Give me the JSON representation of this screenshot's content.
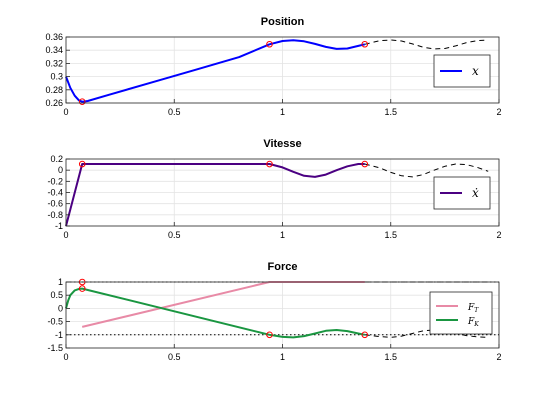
{
  "chart_data": [
    {
      "type": "line",
      "title": "Position",
      "xlim": [
        0,
        2
      ],
      "ylim": [
        0.26,
        0.36
      ],
      "xticks": [
        "0",
        "0.5",
        "1",
        "1.5",
        "2"
      ],
      "yticks": [
        "0.26",
        "0.28",
        "0.3",
        "0.32",
        "0.34",
        "0.36"
      ],
      "grid": true,
      "legend_position": "right",
      "legend": [
        {
          "label": "x",
          "color": "#0000ff"
        }
      ],
      "markers": [
        [
          0.075,
          0.262
        ],
        [
          0.94,
          0.349
        ],
        [
          1.38,
          0.349
        ]
      ],
      "series": [
        {
          "name": "x",
          "color": "#0000ff",
          "style": "solid",
          "x": [
            0,
            0.02,
            0.04,
            0.06,
            0.075,
            0.1,
            0.2,
            0.4,
            0.6,
            0.8,
            0.94,
            1.0,
            1.05,
            1.1,
            1.15,
            1.2,
            1.25,
            1.3,
            1.35,
            1.38
          ],
          "y": [
            0.3,
            0.283,
            0.271,
            0.264,
            0.262,
            0.263,
            0.2725,
            0.2915,
            0.3105,
            0.3295,
            0.349,
            0.354,
            0.355,
            0.3535,
            0.3495,
            0.345,
            0.342,
            0.3425,
            0.3465,
            0.349
          ]
        },
        {
          "name": "",
          "color": "#000000",
          "style": "dashed",
          "x": [
            1.38,
            1.45,
            1.5,
            1.55,
            1.6,
            1.65,
            1.7,
            1.75,
            1.8,
            1.85,
            1.9,
            1.95
          ],
          "y": [
            0.349,
            0.3545,
            0.3555,
            0.354,
            0.3495,
            0.3445,
            0.342,
            0.3425,
            0.3465,
            0.3515,
            0.3545,
            0.3555
          ]
        }
      ]
    },
    {
      "type": "line",
      "title": "Vitesse",
      "xlim": [
        0,
        2
      ],
      "ylim": [
        -1,
        0.2
      ],
      "xticks": [
        "0",
        "0.5",
        "1",
        "1.5",
        "2"
      ],
      "yticks": [
        "-1",
        "-0.8",
        "-0.6",
        "-0.4",
        "-0.2",
        "0",
        "0.2"
      ],
      "grid": true,
      "legend_position": "right",
      "legend": [
        {
          "label": "ẋ",
          "color": "#4b0082"
        }
      ],
      "markers": [
        [
          0.075,
          0.11
        ],
        [
          0.94,
          0.11
        ],
        [
          1.38,
          0.11
        ]
      ],
      "series": [
        {
          "name": "ẋ",
          "color": "#4b0082",
          "style": "solid",
          "x": [
            0,
            0.075,
            0.94,
            1.0,
            1.05,
            1.1,
            1.15,
            1.2,
            1.25,
            1.3,
            1.35,
            1.38
          ],
          "y": [
            -1,
            0.11,
            0.11,
            0.05,
            -0.03,
            -0.1,
            -0.12,
            -0.08,
            0.0,
            0.07,
            0.11,
            0.11
          ]
        },
        {
          "name": "",
          "color": "#000000",
          "style": "dashed",
          "x": [
            1.38,
            1.45,
            1.5,
            1.55,
            1.6,
            1.65,
            1.7,
            1.75,
            1.8,
            1.85,
            1.9,
            1.95
          ],
          "y": [
            0.11,
            0.04,
            -0.04,
            -0.1,
            -0.12,
            -0.08,
            0.0,
            0.07,
            0.11,
            0.1,
            0.05,
            -0.02
          ]
        }
      ]
    },
    {
      "type": "line",
      "title": "Force",
      "xlim": [
        0,
        2
      ],
      "ylim": [
        -1.5,
        1
      ],
      "xticks": [
        "0",
        "0.5",
        "1",
        "1.5",
        "2"
      ],
      "yticks": [
        "-1.5",
        "-1",
        "-0.5",
        "0",
        "0.5",
        "1"
      ],
      "grid": true,
      "legend_position": "right",
      "legend": [
        {
          "label": "F",
          "sub": "T",
          "color": "#e88aa6"
        },
        {
          "label": "F",
          "sub": "K",
          "color": "#1a9641"
        }
      ],
      "hlines": [
        1,
        -1
      ],
      "markers": [
        [
          0.075,
          1.0
        ],
        [
          0.075,
          0.75
        ],
        [
          0.94,
          -1.0
        ],
        [
          1.38,
          -1.0
        ]
      ],
      "series": [
        {
          "name": "F_T",
          "color": "#e88aa6",
          "style": "solid",
          "x": [
            0.075,
            0.94,
            1.38
          ],
          "y": [
            -0.7,
            1.0,
            1.0
          ]
        },
        {
          "name": "F_K",
          "color": "#1a9641",
          "style": "solid",
          "x": [
            0,
            0.01,
            0.02,
            0.04,
            0.06,
            0.075,
            0.94,
            1.0,
            1.05,
            1.1,
            1.15,
            1.2,
            1.25,
            1.3,
            1.35,
            1.38
          ],
          "y": [
            0,
            0.3,
            0.5,
            0.68,
            0.74,
            0.75,
            -1.0,
            -1.08,
            -1.1,
            -1.05,
            -0.95,
            -0.85,
            -0.82,
            -0.86,
            -0.95,
            -1.0
          ]
        },
        {
          "name": "",
          "color": "#000000",
          "style": "dashed",
          "x": [
            1.38,
            1.45,
            1.5,
            1.55,
            1.6,
            1.65,
            1.7,
            1.75,
            1.8,
            1.85,
            1.9,
            1.95
          ],
          "y": [
            -1.0,
            -1.07,
            -1.1,
            -1.05,
            -0.95,
            -0.85,
            -0.82,
            -0.86,
            -0.95,
            -1.03,
            -1.08,
            -1.1
          ]
        },
        {
          "name": "",
          "color": "#000000",
          "style": "dashed",
          "x": [
            1.38,
            1.95
          ],
          "y": [
            1.0,
            1.0
          ]
        }
      ]
    }
  ]
}
